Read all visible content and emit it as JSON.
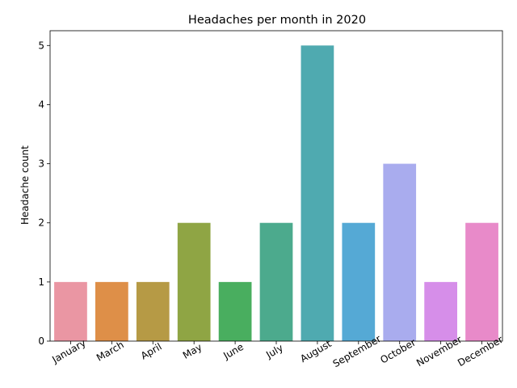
{
  "chart_data": {
    "type": "bar",
    "title": "Headaches per month in 2020",
    "xlabel": "",
    "ylabel": "Headache count",
    "categories": [
      "January",
      "March",
      "April",
      "May",
      "June",
      "July",
      "August",
      "September",
      "October",
      "November",
      "December"
    ],
    "values": [
      1,
      1,
      1,
      2,
      1,
      2,
      5,
      2,
      3,
      1,
      2
    ],
    "colors": [
      "#ea96a3",
      "#de8f48",
      "#b69a45",
      "#8fa544",
      "#49ae5f",
      "#4caa8d",
      "#4faab0",
      "#55a9d5",
      "#a9acee",
      "#d68ee9",
      "#e88ac9"
    ],
    "ylim": [
      0,
      5.25
    ],
    "yticks": [
      0,
      1,
      2,
      3,
      4,
      5
    ],
    "grid": false,
    "legend": "none"
  }
}
